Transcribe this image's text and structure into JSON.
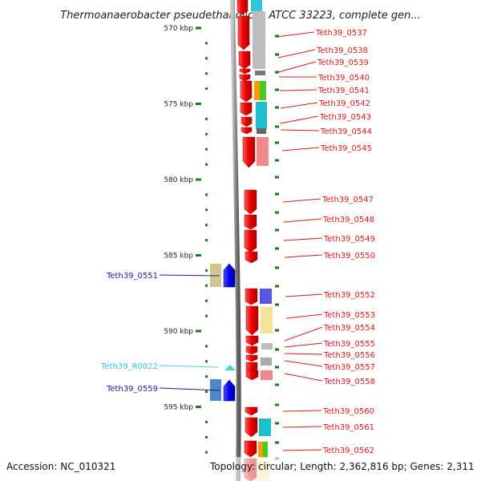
{
  "title": "Thermoanaerobacter pseudethanolicus ATCC 33223, complete gen...",
  "ruler": [
    {
      "label": "570 kbp",
      "kbp": 570
    },
    {
      "label": "575 kbp",
      "kbp": 575
    },
    {
      "label": "580 kbp",
      "kbp": 580
    },
    {
      "label": "585 kbp",
      "kbp": 585
    },
    {
      "label": "590 kbp",
      "kbp": 590
    },
    {
      "label": "595 kbp",
      "kbp": 595
    }
  ],
  "genes_right": [
    {
      "id": "Teth39_0537"
    },
    {
      "id": "Teth39_0538"
    },
    {
      "id": "Teth39_0539"
    },
    {
      "id": "Teth39_0540"
    },
    {
      "id": "Teth39_0541"
    },
    {
      "id": "Teth39_0542"
    },
    {
      "id": "Teth39_0543"
    },
    {
      "id": "Teth39_0544"
    },
    {
      "id": "Teth39_0545"
    },
    {
      "id": "Teth39_0547"
    },
    {
      "id": "Teth39_0548"
    },
    {
      "id": "Teth39_0549"
    },
    {
      "id": "Teth39_0550"
    },
    {
      "id": "Teth39_0552"
    },
    {
      "id": "Teth39_0553"
    },
    {
      "id": "Teth39_0554"
    },
    {
      "id": "Teth39_0555"
    },
    {
      "id": "Teth39_0556"
    },
    {
      "id": "Teth39_0557"
    },
    {
      "id": "Teth39_0558"
    },
    {
      "id": "Teth39_0560"
    },
    {
      "id": "Teth39_0561"
    },
    {
      "id": "Teth39_0562"
    }
  ],
  "genes_left": [
    {
      "id": "Teth39_0551",
      "kind": "gene"
    },
    {
      "id": "Teth39_R0022",
      "kind": "rna"
    },
    {
      "id": "Teth39_0559",
      "kind": "gene"
    }
  ],
  "colors": {
    "gene_forward": "#ee0000",
    "gene_reverse": "#0000dd",
    "rna": "#44ccee",
    "backbone": "#888888",
    "right_label": "#e0141e",
    "left_label": "#1a1a9a",
    "ruler_tick": "#1a7a1a"
  },
  "footer": {
    "accession": "Accession: NC_010321",
    "topology": "Topology: circular; Length: 2,362,816 bp; Genes: 2,311"
  }
}
